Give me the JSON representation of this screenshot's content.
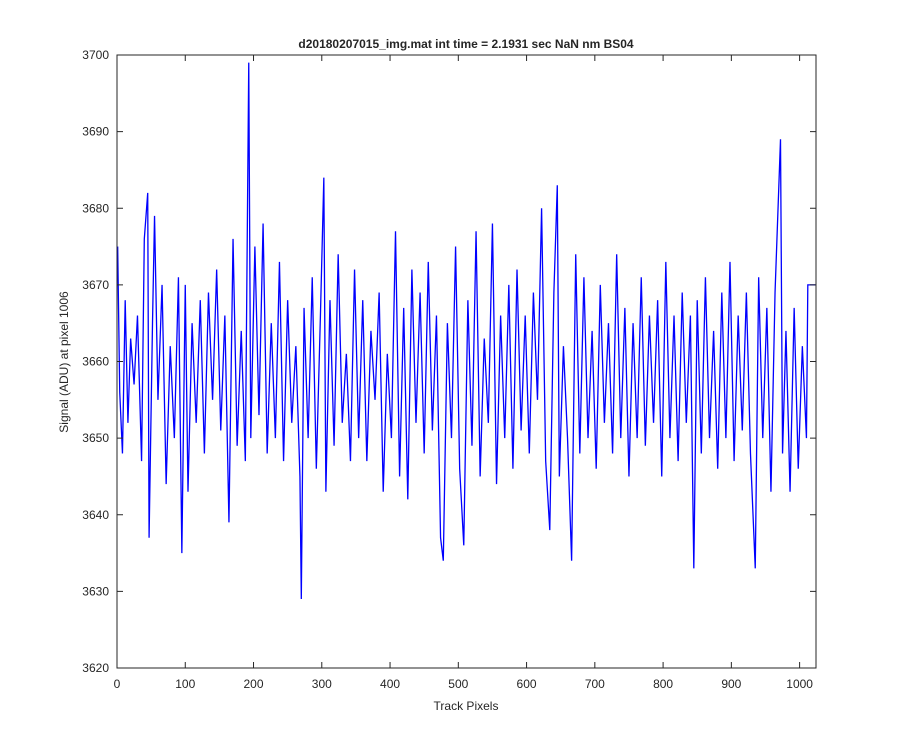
{
  "chart_data": {
    "type": "line",
    "title": "d20180207015_img.mat int time = 2.1931 sec  NaN nm BS04",
    "xlabel": "Track Pixels",
    "ylabel": "Signal (ADU) at pixel 1006",
    "xlim": [
      0,
      1024
    ],
    "ylim": [
      3620,
      3700
    ],
    "xticks": [
      0,
      100,
      200,
      300,
      400,
      500,
      600,
      700,
      800,
      900,
      1000
    ],
    "yticks": [
      3620,
      3630,
      3640,
      3650,
      3660,
      3670,
      3680,
      3690,
      3700
    ],
    "x": [
      1,
      4,
      8,
      12,
      16,
      20,
      25,
      30,
      36,
      40,
      45,
      47,
      52,
      55,
      60,
      66,
      72,
      78,
      84,
      90,
      95,
      100,
      104,
      110,
      116,
      122,
      128,
      134,
      140,
      146,
      152,
      158,
      164,
      170,
      176,
      182,
      188,
      193,
      196,
      202,
      208,
      214,
      220,
      226,
      232,
      238,
      244,
      250,
      256,
      262,
      268,
      270,
      274,
      280,
      286,
      292,
      298,
      303,
      306,
      312,
      318,
      324,
      330,
      336,
      342,
      348,
      354,
      360,
      366,
      372,
      378,
      384,
      390,
      396,
      402,
      408,
      414,
      420,
      426,
      432,
      438,
      444,
      450,
      456,
      462,
      468,
      474,
      478,
      484,
      490,
      496,
      502,
      508,
      514,
      520,
      526,
      532,
      538,
      544,
      550,
      556,
      562,
      568,
      574,
      580,
      586,
      592,
      598,
      604,
      610,
      616,
      622,
      628,
      634,
      640,
      645,
      648,
      654,
      660,
      666,
      672,
      678,
      684,
      690,
      696,
      702,
      708,
      714,
      720,
      726,
      732,
      738,
      744,
      750,
      756,
      762,
      768,
      774,
      780,
      786,
      792,
      798,
      804,
      810,
      816,
      822,
      828,
      834,
      840,
      845,
      850,
      856,
      862,
      868,
      874,
      880,
      886,
      892,
      898,
      904,
      910,
      916,
      922,
      928,
      935,
      940,
      946,
      952,
      958,
      964,
      972,
      975,
      980,
      986,
      992,
      998,
      1004,
      1010,
      1012,
      1023
    ],
    "series": [
      {
        "name": "signal",
        "color": "#0000ff",
        "values": [
          3675,
          3656,
          3648,
          3668,
          3652,
          3663,
          3657,
          3666,
          3647,
          3676,
          3682,
          3637,
          3665,
          3679,
          3655,
          3670,
          3644,
          3662,
          3650,
          3671,
          3635,
          3670,
          3643,
          3665,
          3652,
          3668,
          3648,
          3669,
          3655,
          3672,
          3651,
          3666,
          3639,
          3676,
          3649,
          3664,
          3647,
          3699,
          3650,
          3675,
          3653,
          3678,
          3648,
          3665,
          3650,
          3673,
          3647,
          3668,
          3652,
          3662,
          3645,
          3629,
          3667,
          3650,
          3671,
          3646,
          3666,
          3684,
          3643,
          3668,
          3649,
          3674,
          3652,
          3661,
          3647,
          3672,
          3650,
          3668,
          3647,
          3664,
          3655,
          3669,
          3643,
          3661,
          3650,
          3677,
          3645,
          3667,
          3642,
          3672,
          3652,
          3669,
          3648,
          3673,
          3651,
          3666,
          3637,
          3634,
          3665,
          3650,
          3675,
          3646,
          3636,
          3668,
          3649,
          3677,
          3645,
          3663,
          3652,
          3678,
          3644,
          3666,
          3650,
          3670,
          3646,
          3672,
          3651,
          3666,
          3648,
          3669,
          3655,
          3680,
          3647,
          3638,
          3669,
          3683,
          3645,
          3662,
          3650,
          3634,
          3674,
          3648,
          3671,
          3650,
          3664,
          3646,
          3670,
          3652,
          3665,
          3648,
          3674,
          3650,
          3667,
          3645,
          3665,
          3650,
          3671,
          3649,
          3666,
          3652,
          3668,
          3645,
          3673,
          3650,
          3666,
          3647,
          3669,
          3652,
          3666,
          3633,
          3668,
          3648,
          3671,
          3650,
          3664,
          3646,
          3669,
          3650,
          3673,
          3647,
          3666,
          3651,
          3669,
          3648,
          3633,
          3671,
          3650,
          3667,
          3643,
          3669,
          3689,
          3648,
          3664,
          3643,
          3667,
          3646,
          3662,
          3650,
          3670,
          3670
        ]
      }
    ]
  }
}
